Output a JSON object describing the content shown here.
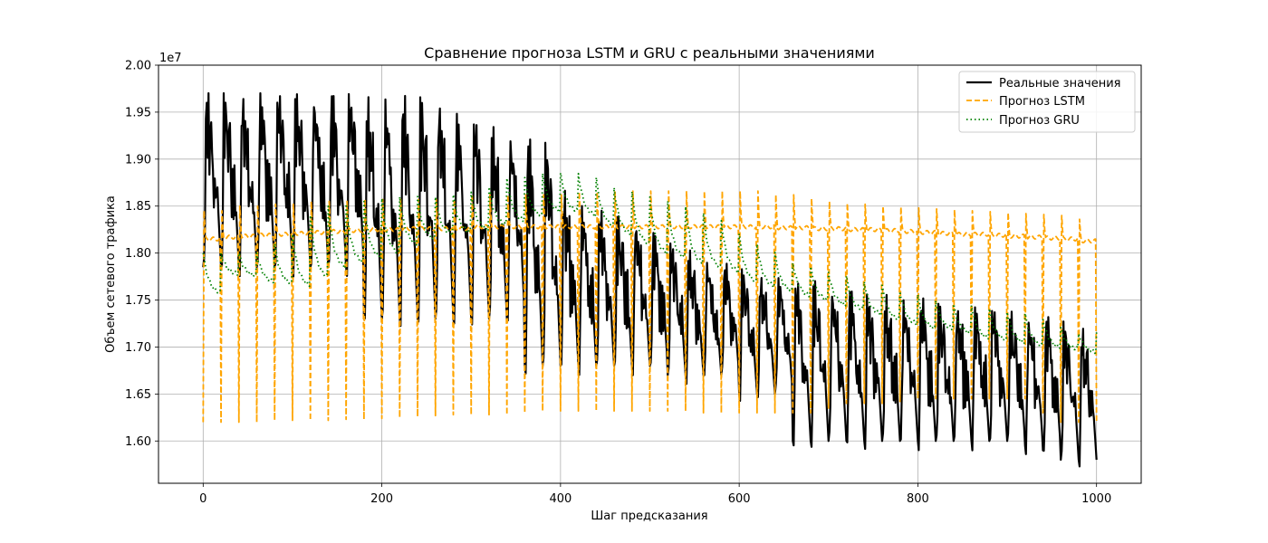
{
  "chart_data": {
    "type": "line",
    "title": "Сравнение прогноза LSTM и GRU с реальными значениями",
    "xlabel": "Шаг предсказания",
    "ylabel": "Объем сетевого трафика",
    "y_offset_label": "1e7",
    "xlim": [
      -50,
      1050
    ],
    "ylim": [
      1.555,
      2.0
    ],
    "x_ticks": [
      0,
      200,
      400,
      600,
      800,
      1000
    ],
    "y_ticks": [
      1.6,
      1.65,
      1.7,
      1.75,
      1.8,
      1.85,
      1.9,
      1.95,
      2.0
    ],
    "x_tick_labels": [
      "0",
      "200",
      "400",
      "600",
      "800",
      "1000"
    ],
    "y_tick_labels": [
      "1.60",
      "1.65",
      "1.70",
      "1.75",
      "1.80",
      "1.85",
      "1.90",
      "1.95",
      "2.00"
    ],
    "grid": true,
    "legend_position": "top-right",
    "x_range": [
      0,
      1000
    ],
    "series": [
      {
        "name": "Реальные значения",
        "color": "#000000",
        "style": "solid",
        "period": 20,
        "cycle_peaks": [
          1.98,
          1.98,
          1.98,
          1.98,
          1.98,
          1.98,
          1.98,
          1.98,
          1.98,
          1.98,
          1.98,
          1.98,
          1.98,
          1.98,
          1.96,
          1.955,
          1.945,
          1.94,
          1.935,
          1.93,
          1.88,
          1.86,
          1.855,
          1.85,
          1.845,
          1.83,
          1.82,
          1.81,
          1.8,
          1.795,
          1.79,
          1.785,
          1.78,
          1.78,
          1.78,
          1.775,
          1.77,
          1.765,
          1.765,
          1.76,
          1.76,
          1.755,
          1.755,
          1.75,
          1.75,
          1.745,
          1.74,
          1.74,
          1.735,
          1.73
        ],
        "cycle_troughs": [
          1.785,
          1.785,
          1.785,
          1.785,
          1.785,
          1.785,
          1.785,
          1.785,
          1.785,
          1.73,
          1.73,
          1.73,
          1.73,
          1.73,
          1.73,
          1.73,
          1.73,
          1.73,
          1.68,
          1.68,
          1.68,
          1.68,
          1.68,
          1.68,
          1.68,
          1.68,
          1.67,
          1.67,
          1.67,
          1.67,
          1.65,
          1.65,
          1.65,
          1.6,
          1.6,
          1.6,
          1.6,
          1.6,
          1.6,
          1.6,
          1.6,
          1.6,
          1.6,
          1.6,
          1.6,
          1.6,
          1.595,
          1.59,
          1.58,
          1.58
        ]
      },
      {
        "name": "Прогноз LSTM",
        "color": "#ffa500",
        "style": "dashed",
        "period": 20,
        "cycle_baseline": [
          1.815,
          1.817,
          1.818,
          1.819,
          1.82,
          1.821,
          1.822,
          1.823,
          1.824,
          1.825,
          1.825,
          1.826,
          1.826,
          1.826,
          1.826,
          1.828,
          1.828,
          1.828,
          1.828,
          1.828,
          1.828,
          1.828,
          1.828,
          1.828,
          1.828,
          1.828,
          1.828,
          1.828,
          1.828,
          1.828,
          1.828,
          1.828,
          1.827,
          1.827,
          1.826,
          1.826,
          1.825,
          1.825,
          1.824,
          1.823,
          1.822,
          1.821,
          1.82,
          1.82,
          1.819,
          1.818,
          1.817,
          1.816,
          1.815,
          1.813
        ],
        "cycle_dips": [
          1.62,
          1.62,
          1.62,
          1.62,
          1.622,
          1.622,
          1.622,
          1.622,
          1.623,
          1.623,
          1.624,
          1.625,
          1.626,
          1.627,
          1.628,
          1.628,
          1.628,
          1.628,
          1.63,
          1.632,
          1.632,
          1.632,
          1.632,
          1.632,
          1.632,
          1.632,
          1.632,
          1.632,
          1.63,
          1.63,
          1.63,
          1.63,
          1.63,
          1.63,
          1.63,
          1.635,
          1.64,
          1.64,
          1.64,
          1.642,
          1.645,
          1.645,
          1.645,
          1.645,
          1.645,
          1.645,
          1.645,
          1.63,
          1.62,
          1.62
        ],
        "cycle_peaks": [
          1.845,
          1.845,
          1.85,
          1.85,
          1.852,
          1.852,
          1.855,
          1.855,
          1.855,
          1.857,
          1.857,
          1.857,
          1.857,
          1.857,
          1.857,
          1.862,
          1.862,
          1.862,
          1.862,
          1.862,
          1.862,
          1.865,
          1.865,
          1.865,
          1.866,
          1.866,
          1.866,
          1.866,
          1.866,
          1.866,
          1.866,
          1.866,
          1.862,
          1.862,
          1.858,
          1.855,
          1.853,
          1.852,
          1.85,
          1.849,
          1.848,
          1.847,
          1.846,
          1.845,
          1.844,
          1.843,
          1.842,
          1.841,
          1.84,
          1.836
        ]
      },
      {
        "name": "Прогноз GRU",
        "color": "#008000",
        "style": "dotted",
        "period": 20,
        "cycle_start": [
          1.8,
          1.8,
          1.8,
          1.8,
          1.81,
          1.82,
          1.84,
          1.85,
          1.852,
          1.855,
          1.858,
          1.86,
          1.86,
          1.86,
          1.862,
          1.865,
          1.87,
          1.88,
          1.88,
          1.885,
          1.885,
          1.885,
          1.88,
          1.87,
          1.865,
          1.86,
          1.855,
          1.85,
          1.842,
          1.835,
          1.82,
          1.81,
          1.8,
          1.79,
          1.785,
          1.78,
          1.775,
          1.77,
          1.765,
          1.76,
          1.755,
          1.75,
          1.745,
          1.745,
          1.74,
          1.738,
          1.735,
          1.73,
          1.72,
          1.715
        ],
        "cycle_end": [
          1.758,
          1.778,
          1.776,
          1.77,
          1.768,
          1.766,
          1.775,
          1.785,
          1.79,
          1.795,
          1.8,
          1.81,
          1.815,
          1.82,
          1.822,
          1.825,
          1.83,
          1.835,
          1.84,
          1.845,
          1.845,
          1.84,
          1.83,
          1.82,
          1.81,
          1.8,
          1.795,
          1.79,
          1.785,
          1.78,
          1.77,
          1.765,
          1.76,
          1.755,
          1.75,
          1.745,
          1.74,
          1.735,
          1.73,
          1.725,
          1.72,
          1.72,
          1.715,
          1.71,
          1.708,
          1.705,
          1.702,
          1.7,
          1.698,
          1.695
        ]
      }
    ]
  }
}
